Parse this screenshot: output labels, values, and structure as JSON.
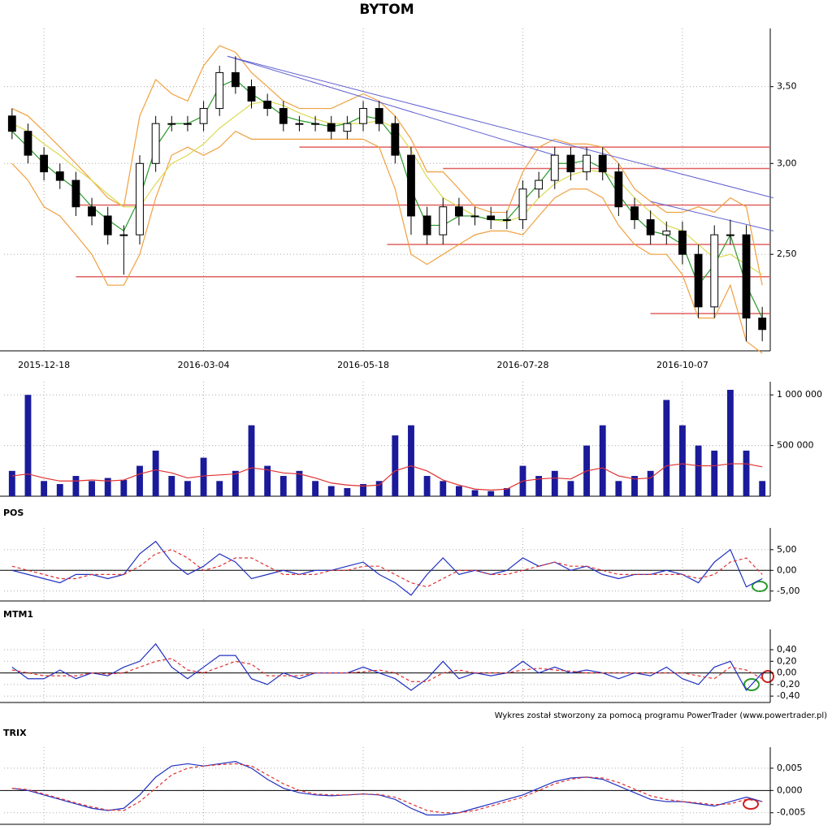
{
  "footer": "Wykres został stworzony za pomocą programu PowerTrader (www.powertrader.pl)",
  "chart_data": [
    {
      "type": "candlestick",
      "title": "BYTOM",
      "log": true,
      "grid": true,
      "categories": [
        null,
        null,
        "2015-12-18",
        null,
        null,
        null,
        null,
        null,
        null,
        null,
        null,
        null,
        "2016-03-04",
        null,
        null,
        null,
        null,
        null,
        null,
        null,
        null,
        null,
        "2016-05-18",
        null,
        null,
        null,
        null,
        null,
        null,
        null,
        null,
        null,
        "2016-07-28",
        null,
        null,
        null,
        null,
        null,
        null,
        null,
        null,
        null,
        "2016-10-07",
        null,
        null,
        null,
        null,
        null
      ],
      "open": [
        3.3,
        3.2,
        3.05,
        2.95,
        2.9,
        2.75,
        2.7,
        2.6,
        2.6,
        3.0,
        3.25,
        3.25,
        3.25,
        3.35,
        3.6,
        3.5,
        3.4,
        3.35,
        3.25,
        3.25,
        3.25,
        3.2,
        3.25,
        3.35,
        3.25,
        3.05,
        2.7,
        2.6,
        2.75,
        2.7,
        2.7,
        2.68,
        2.68,
        2.85,
        2.9,
        3.05,
        2.95,
        3.05,
        2.95,
        2.75,
        2.68,
        2.6,
        2.62,
        2.5,
        2.25,
        2.6,
        2.6,
        2.2
      ],
      "high": [
        3.35,
        3.25,
        3.1,
        3.0,
        2.95,
        2.8,
        2.75,
        2.65,
        3.05,
        3.3,
        3.3,
        3.3,
        3.4,
        3.65,
        3.72,
        3.55,
        3.45,
        3.4,
        3.3,
        3.3,
        3.3,
        3.3,
        3.4,
        3.4,
        3.3,
        3.1,
        2.75,
        2.8,
        2.8,
        2.75,
        2.75,
        2.73,
        2.9,
        2.95,
        3.1,
        3.1,
        3.1,
        3.1,
        3.0,
        2.8,
        2.73,
        2.67,
        2.67,
        2.55,
        2.65,
        2.68,
        2.65,
        2.25
      ],
      "low": [
        3.15,
        3.0,
        2.9,
        2.85,
        2.7,
        2.65,
        2.55,
        2.4,
        2.55,
        2.95,
        3.2,
        3.2,
        3.2,
        3.3,
        3.45,
        3.35,
        3.3,
        3.2,
        3.2,
        3.2,
        3.15,
        3.15,
        3.2,
        3.2,
        3.0,
        2.6,
        2.55,
        2.55,
        2.65,
        2.65,
        2.63,
        2.63,
        2.63,
        2.8,
        2.85,
        2.9,
        2.9,
        2.9,
        2.7,
        2.63,
        2.55,
        2.55,
        2.45,
        2.2,
        2.2,
        2.55,
        2.1,
        2.1
      ],
      "close": [
        3.2,
        3.05,
        2.95,
        2.9,
        2.75,
        2.7,
        2.6,
        2.6,
        3.0,
        3.25,
        3.25,
        3.25,
        3.35,
        3.6,
        3.5,
        3.4,
        3.35,
        3.25,
        3.25,
        3.25,
        3.2,
        3.25,
        3.35,
        3.25,
        3.05,
        2.7,
        2.6,
        2.75,
        2.7,
        2.7,
        2.68,
        2.68,
        2.85,
        2.9,
        3.05,
        2.95,
        3.05,
        2.95,
        2.75,
        2.68,
        2.6,
        2.62,
        2.5,
        2.25,
        2.6,
        2.6,
        2.2,
        2.15
      ],
      "series": [
        {
          "color": "#f0a040",
          "values": [
            3.35,
            3.3,
            3.2,
            3.1,
            3.0,
            2.9,
            2.8,
            2.75,
            3.3,
            3.55,
            3.45,
            3.4,
            3.65,
            3.8,
            3.75,
            3.6,
            3.5,
            3.4,
            3.35,
            3.35,
            3.35,
            3.4,
            3.45,
            3.4,
            3.3,
            3.15,
            2.95,
            2.95,
            2.85,
            2.75,
            2.72,
            2.72,
            2.95,
            3.1,
            3.15,
            3.12,
            3.12,
            3.1,
            3.0,
            2.85,
            2.78,
            2.72,
            2.72,
            2.75,
            2.72,
            2.8,
            2.75,
            2.35
          ]
        },
        {
          "color": "#f0a040",
          "values": [
            3.0,
            2.9,
            2.75,
            2.7,
            2.6,
            2.5,
            2.35,
            2.35,
            2.5,
            2.8,
            3.05,
            3.1,
            3.05,
            3.1,
            3.2,
            3.15,
            3.15,
            3.15,
            3.15,
            3.15,
            3.15,
            3.15,
            3.15,
            3.1,
            2.85,
            2.5,
            2.45,
            2.5,
            2.55,
            2.6,
            2.62,
            2.62,
            2.6,
            2.7,
            2.8,
            2.85,
            2.85,
            2.8,
            2.65,
            2.55,
            2.5,
            2.5,
            2.4,
            2.2,
            2.2,
            2.35,
            2.1,
            2.05
          ]
        },
        {
          "color": "#dada50",
          "values": [
            3.25,
            3.2,
            3.12,
            3.05,
            2.97,
            2.9,
            2.82,
            2.75,
            2.75,
            2.88,
            3.0,
            3.05,
            3.12,
            3.22,
            3.3,
            3.38,
            3.4,
            3.37,
            3.32,
            3.28,
            3.25,
            3.25,
            3.25,
            3.27,
            3.22,
            3.08,
            2.92,
            2.8,
            2.75,
            2.7,
            2.68,
            2.67,
            2.7,
            2.8,
            2.88,
            2.93,
            2.96,
            2.95,
            2.9,
            2.8,
            2.72,
            2.65,
            2.62,
            2.55,
            2.48,
            2.5,
            2.45,
            2.4
          ]
        },
        {
          "color": "#2a9a2a",
          "values": [
            3.2,
            3.1,
            3.0,
            2.92,
            2.85,
            2.75,
            2.68,
            2.62,
            2.8,
            3.1,
            3.25,
            3.25,
            3.3,
            3.5,
            3.55,
            3.45,
            3.38,
            3.3,
            3.27,
            3.25,
            3.23,
            3.25,
            3.3,
            3.28,
            3.15,
            2.85,
            2.65,
            2.65,
            2.7,
            2.7,
            2.68,
            2.68,
            2.78,
            2.88,
            3.0,
            3.0,
            3.02,
            2.97,
            2.82,
            2.7,
            2.62,
            2.6,
            2.55,
            2.35,
            2.45,
            2.6,
            2.35,
            2.2
          ]
        }
      ],
      "levels": [
        {
          "value": 3.1,
          "from": 18
        },
        {
          "value": 2.97,
          "from": 27
        },
        {
          "value": 2.76,
          "from": 4
        },
        {
          "value": 2.55,
          "from": 23.5
        },
        {
          "value": 2.39,
          "from": 4
        },
        {
          "value": 2.22,
          "from": 40
        }
      ],
      "level_color": "#e06060",
      "trend_lines": [
        {
          "x": [
            13.5,
            47.7
          ],
          "y": [
            3.72,
            2.8
          ]
        },
        {
          "x": [
            13.5,
            34
          ],
          "y": [
            3.72,
            3.05
          ]
        },
        {
          "x": [
            40,
            47.7
          ],
          "y": [
            2.78,
            2.62
          ]
        }
      ],
      "trend_color": "#6060d0",
      "ylim": [
        2.06,
        3.87
      ],
      "yticks": [
        {
          "value": 2.5,
          "label": "2,50"
        },
        {
          "value": 3,
          "label": "3,00"
        },
        {
          "value": 3.5,
          "label": "3,50"
        }
      ]
    },
    {
      "type": "bar",
      "grid": true,
      "color": "#1a1a9a",
      "values": [
        250000,
        1000000,
        150000,
        120000,
        200000,
        150000,
        180000,
        160000,
        300000,
        450000,
        200000,
        150000,
        380000,
        150000,
        250000,
        700000,
        300000,
        200000,
        250000,
        150000,
        100000,
        80000,
        120000,
        150000,
        600000,
        700000,
        200000,
        150000,
        100000,
        60000,
        50000,
        80000,
        300000,
        200000,
        250000,
        150000,
        500000,
        700000,
        150000,
        200000,
        250000,
        950000,
        700000,
        500000,
        450000,
        1050000,
        450000,
        150000
      ],
      "series": [
        {
          "color": "#e03030",
          "values": [
            200000,
            220000,
            180000,
            150000,
            150000,
            160000,
            150000,
            160000,
            220000,
            260000,
            230000,
            180000,
            200000,
            210000,
            220000,
            280000,
            260000,
            230000,
            220000,
            180000,
            130000,
            110000,
            100000,
            110000,
            250000,
            300000,
            250000,
            160000,
            110000,
            70000,
            60000,
            70000,
            150000,
            170000,
            180000,
            170000,
            250000,
            280000,
            200000,
            170000,
            180000,
            300000,
            320000,
            300000,
            300000,
            320000,
            320000,
            290000
          ]
        }
      ],
      "ylim": [
        0,
        1050000
      ],
      "yticks": [
        {
          "value": 500000,
          "label": "500 000"
        },
        {
          "value": 1000000,
          "label": "1 000 000"
        }
      ]
    },
    {
      "type": "line",
      "title": "POS",
      "grid": true,
      "zero_line": true,
      "series": [
        {
          "color": "#2030c0",
          "values": [
            0,
            -1,
            -2,
            -3,
            -1,
            -1,
            -2,
            -1,
            4,
            7,
            2,
            -1,
            1,
            4,
            2,
            -2,
            -1,
            0,
            -1,
            0,
            0,
            1,
            2,
            -1,
            -3,
            -6,
            -1,
            3,
            -1,
            0,
            -1,
            0,
            3,
            1,
            2,
            0,
            1,
            -1,
            -2,
            -1,
            -1,
            0,
            -1,
            -3,
            2,
            5,
            -4,
            -2
          ]
        },
        {
          "color": "#e03030",
          "dash": true,
          "values": [
            1,
            0,
            -1,
            -2,
            -2,
            -1,
            -1,
            -1,
            1,
            4,
            5,
            3,
            0,
            1,
            3,
            3,
            1,
            -1,
            -1,
            -1,
            0,
            0,
            1,
            1,
            -1,
            -3,
            -4,
            -2,
            0,
            0,
            -1,
            -1,
            0,
            1,
            2,
            1,
            1,
            0,
            -1,
            -1,
            -1,
            -1,
            -1,
            -2,
            -1,
            2,
            3,
            -1
          ]
        }
      ],
      "ylim": [
        -7.4,
        8.3
      ],
      "yticks": [
        {
          "value": -5,
          "label": "-5,00"
        },
        {
          "value": 0,
          "label": "0,00"
        },
        {
          "value": 5,
          "label": "5,00"
        }
      ]
    },
    {
      "type": "line",
      "title": "MTM1",
      "grid": true,
      "zero_line": true,
      "series": [
        {
          "color": "#2030c0",
          "values": [
            0.1,
            -0.1,
            -0.1,
            0.05,
            -0.1,
            0,
            -0.05,
            0.1,
            0.2,
            0.5,
            0.1,
            -0.1,
            0.1,
            0.3,
            0.3,
            -0.1,
            -0.2,
            0,
            -0.1,
            0,
            0,
            0,
            0.1,
            0,
            -0.1,
            -0.3,
            -0.1,
            0.2,
            -0.1,
            0,
            -0.05,
            0,
            0.2,
            0,
            0.1,
            0,
            0.05,
            0,
            -0.1,
            0,
            -0.05,
            0.1,
            -0.1,
            -0.2,
            0.1,
            0.2,
            -0.3,
            0
          ]
        },
        {
          "color": "#e03030",
          "dash": true,
          "values": [
            0.05,
            0,
            -0.05,
            -0.05,
            -0.05,
            0,
            -0.02,
            0,
            0.1,
            0.2,
            0.25,
            0.05,
            0,
            0.1,
            0.2,
            0.15,
            -0.05,
            -0.05,
            -0.05,
            0,
            0,
            0,
            0.02,
            0.05,
            0,
            -0.15,
            -0.15,
            0,
            0.05,
            0,
            0,
            0,
            0.05,
            0.08,
            0.05,
            0.03,
            0,
            0,
            0,
            0,
            0,
            0,
            0,
            -0.05,
            -0.1,
            0.1,
            0.05,
            -0.1
          ]
        }
      ],
      "ylim": [
        -0.51,
        0.61
      ],
      "yticks": [
        {
          "value": -0.4,
          "label": "-0,40"
        },
        {
          "value": -0.2,
          "label": "-0,20"
        },
        {
          "value": 0,
          "label": "0,00"
        },
        {
          "value": 0.2,
          "label": "0,20"
        },
        {
          "value": 0.4,
          "label": "0,40"
        }
      ]
    },
    {
      "type": "line",
      "title": "TRIX",
      "grid": true,
      "zero_line": true,
      "series": [
        {
          "color": "#2030c0",
          "values": [
            0.0005,
            0,
            -0.001,
            -0.002,
            -0.003,
            -0.004,
            -0.0045,
            -0.004,
            -0.001,
            0.003,
            0.0055,
            0.006,
            0.0055,
            0.006,
            0.0065,
            0.005,
            0.0025,
            0.0005,
            -0.0005,
            -0.001,
            -0.0012,
            -0.001,
            -0.0008,
            -0.001,
            -0.002,
            -0.004,
            -0.0055,
            -0.0055,
            -0.005,
            -0.004,
            -0.003,
            -0.002,
            -0.001,
            0.0005,
            0.002,
            0.0028,
            0.003,
            0.0025,
            0.001,
            -0.0005,
            -0.002,
            -0.0025,
            -0.0025,
            -0.003,
            -0.0035,
            -0.0025,
            -0.0015,
            -0.0025
          ]
        },
        {
          "color": "#e03030",
          "dash": true,
          "values": [
            0.0005,
            0.0002,
            -0.0008,
            -0.0018,
            -0.0028,
            -0.0037,
            -0.0044,
            -0.0045,
            -0.0025,
            0.0005,
            0.0035,
            0.005,
            0.0055,
            0.0058,
            0.006,
            0.0055,
            0.0035,
            0.0015,
            0,
            -0.0008,
            -0.001,
            -0.001,
            -0.0008,
            -0.0009,
            -0.0015,
            -0.003,
            -0.0045,
            -0.005,
            -0.005,
            -0.0045,
            -0.0035,
            -0.0025,
            -0.0015,
            0,
            0.0015,
            0.0025,
            0.003,
            0.0028,
            0.0018,
            0.0003,
            -0.0012,
            -0.002,
            -0.0025,
            -0.0028,
            -0.0032,
            -0.003,
            -0.002,
            -0.0025
          ]
        }
      ],
      "ylim": [
        -0.0076,
        0.0079
      ],
      "yticks": [
        {
          "value": -0.005,
          "label": "-0,005"
        },
        {
          "value": 0,
          "label": "0,000"
        },
        {
          "value": 0.005,
          "label": "0,005"
        }
      ]
    }
  ]
}
